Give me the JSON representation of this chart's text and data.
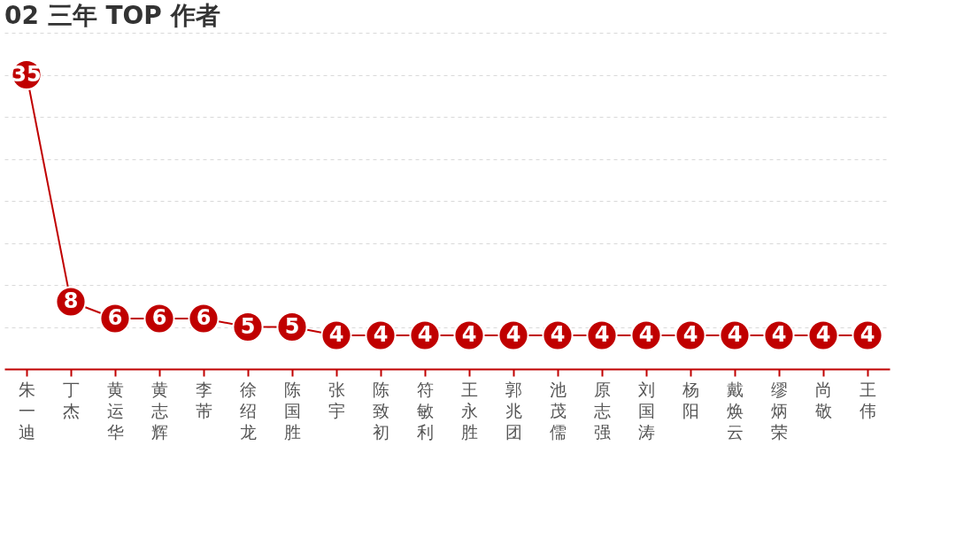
{
  "chart_data": {
    "type": "line",
    "title": "02 三年 TOP 作者",
    "categories": [
      "朱一迪",
      "丁杰",
      "黄运华",
      "黄志辉",
      "李芾",
      "徐绍龙",
      "陈国胜",
      "张宇",
      "陈致初",
      "符敏利",
      "王永胜",
      "郭兆团",
      "池茂儒",
      "原志强",
      "刘国涛",
      "杨阳",
      "戴焕云",
      "缪炳荣",
      "尚敬",
      "王伟"
    ],
    "values": [
      35,
      8,
      6,
      6,
      6,
      5,
      5,
      4,
      4,
      4,
      4,
      4,
      4,
      4,
      4,
      4,
      4,
      4,
      4,
      4
    ],
    "color": "#c00000",
    "marker": "circle",
    "data_labels": true,
    "grid": "y",
    "tick_labels": "x",
    "ylim": [
      0,
      40
    ],
    "yticks": [
      {
        "value": 5,
        "label": null
      },
      {
        "value": 10,
        "label": null
      },
      {
        "value": 15,
        "label": null
      },
      {
        "value": 20,
        "label": null
      },
      {
        "value": 25,
        "label": null
      },
      {
        "value": 30,
        "label": null
      },
      {
        "value": 35,
        "label": null
      },
      {
        "value": 40,
        "label": null
      }
    ]
  }
}
